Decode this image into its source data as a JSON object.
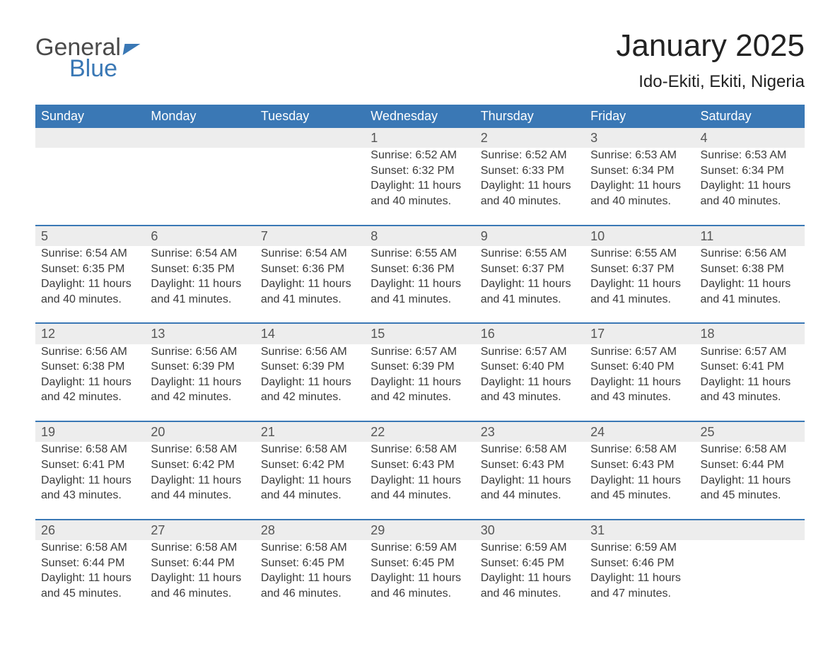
{
  "brand": {
    "part1": "General",
    "part2": "Blue"
  },
  "title": "January 2025",
  "location": "Ido-Ekiti, Ekiti, Nigeria",
  "colors": {
    "header_bg": "#3a78b5",
    "header_text": "#ffffff",
    "daynum_bg": "#ededed",
    "page_bg": "#ffffff",
    "body_text": "#3b3b3b",
    "rule": "#3a78b5"
  },
  "fonts": {
    "title_size_pt": 33,
    "location_size_pt": 18,
    "header_size_pt": 14,
    "body_size_pt": 12
  },
  "weekdays": [
    "Sunday",
    "Monday",
    "Tuesday",
    "Wednesday",
    "Thursday",
    "Friday",
    "Saturday"
  ],
  "weeks": [
    [
      null,
      null,
      null,
      {
        "d": "1",
        "sunrise": "6:52 AM",
        "sunset": "6:32 PM",
        "daylight": "11 hours and 40 minutes."
      },
      {
        "d": "2",
        "sunrise": "6:52 AM",
        "sunset": "6:33 PM",
        "daylight": "11 hours and 40 minutes."
      },
      {
        "d": "3",
        "sunrise": "6:53 AM",
        "sunset": "6:34 PM",
        "daylight": "11 hours and 40 minutes."
      },
      {
        "d": "4",
        "sunrise": "6:53 AM",
        "sunset": "6:34 PM",
        "daylight": "11 hours and 40 minutes."
      }
    ],
    [
      {
        "d": "5",
        "sunrise": "6:54 AM",
        "sunset": "6:35 PM",
        "daylight": "11 hours and 40 minutes."
      },
      {
        "d": "6",
        "sunrise": "6:54 AM",
        "sunset": "6:35 PM",
        "daylight": "11 hours and 41 minutes."
      },
      {
        "d": "7",
        "sunrise": "6:54 AM",
        "sunset": "6:36 PM",
        "daylight": "11 hours and 41 minutes."
      },
      {
        "d": "8",
        "sunrise": "6:55 AM",
        "sunset": "6:36 PM",
        "daylight": "11 hours and 41 minutes."
      },
      {
        "d": "9",
        "sunrise": "6:55 AM",
        "sunset": "6:37 PM",
        "daylight": "11 hours and 41 minutes."
      },
      {
        "d": "10",
        "sunrise": "6:55 AM",
        "sunset": "6:37 PM",
        "daylight": "11 hours and 41 minutes."
      },
      {
        "d": "11",
        "sunrise": "6:56 AM",
        "sunset": "6:38 PM",
        "daylight": "11 hours and 41 minutes."
      }
    ],
    [
      {
        "d": "12",
        "sunrise": "6:56 AM",
        "sunset": "6:38 PM",
        "daylight": "11 hours and 42 minutes."
      },
      {
        "d": "13",
        "sunrise": "6:56 AM",
        "sunset": "6:39 PM",
        "daylight": "11 hours and 42 minutes."
      },
      {
        "d": "14",
        "sunrise": "6:56 AM",
        "sunset": "6:39 PM",
        "daylight": "11 hours and 42 minutes."
      },
      {
        "d": "15",
        "sunrise": "6:57 AM",
        "sunset": "6:39 PM",
        "daylight": "11 hours and 42 minutes."
      },
      {
        "d": "16",
        "sunrise": "6:57 AM",
        "sunset": "6:40 PM",
        "daylight": "11 hours and 43 minutes."
      },
      {
        "d": "17",
        "sunrise": "6:57 AM",
        "sunset": "6:40 PM",
        "daylight": "11 hours and 43 minutes."
      },
      {
        "d": "18",
        "sunrise": "6:57 AM",
        "sunset": "6:41 PM",
        "daylight": "11 hours and 43 minutes."
      }
    ],
    [
      {
        "d": "19",
        "sunrise": "6:58 AM",
        "sunset": "6:41 PM",
        "daylight": "11 hours and 43 minutes."
      },
      {
        "d": "20",
        "sunrise": "6:58 AM",
        "sunset": "6:42 PM",
        "daylight": "11 hours and 44 minutes."
      },
      {
        "d": "21",
        "sunrise": "6:58 AM",
        "sunset": "6:42 PM",
        "daylight": "11 hours and 44 minutes."
      },
      {
        "d": "22",
        "sunrise": "6:58 AM",
        "sunset": "6:43 PM",
        "daylight": "11 hours and 44 minutes."
      },
      {
        "d": "23",
        "sunrise": "6:58 AM",
        "sunset": "6:43 PM",
        "daylight": "11 hours and 44 minutes."
      },
      {
        "d": "24",
        "sunrise": "6:58 AM",
        "sunset": "6:43 PM",
        "daylight": "11 hours and 45 minutes."
      },
      {
        "d": "25",
        "sunrise": "6:58 AM",
        "sunset": "6:44 PM",
        "daylight": "11 hours and 45 minutes."
      }
    ],
    [
      {
        "d": "26",
        "sunrise": "6:58 AM",
        "sunset": "6:44 PM",
        "daylight": "11 hours and 45 minutes."
      },
      {
        "d": "27",
        "sunrise": "6:58 AM",
        "sunset": "6:44 PM",
        "daylight": "11 hours and 46 minutes."
      },
      {
        "d": "28",
        "sunrise": "6:58 AM",
        "sunset": "6:45 PM",
        "daylight": "11 hours and 46 minutes."
      },
      {
        "d": "29",
        "sunrise": "6:59 AM",
        "sunset": "6:45 PM",
        "daylight": "11 hours and 46 minutes."
      },
      {
        "d": "30",
        "sunrise": "6:59 AM",
        "sunset": "6:45 PM",
        "daylight": "11 hours and 46 minutes."
      },
      {
        "d": "31",
        "sunrise": "6:59 AM",
        "sunset": "6:46 PM",
        "daylight": "11 hours and 47 minutes."
      },
      null
    ]
  ],
  "labels": {
    "sunrise": "Sunrise: ",
    "sunset": "Sunset: ",
    "daylight": "Daylight: "
  }
}
